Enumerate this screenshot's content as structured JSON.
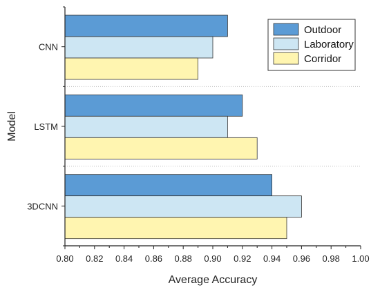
{
  "chart_data": {
    "type": "bar",
    "orientation": "horizontal",
    "categories": [
      "CNN",
      "LSTM",
      "3DCNN"
    ],
    "series": [
      {
        "name": "Outdoor",
        "values": [
          0.91,
          0.92,
          0.94
        ],
        "color": "#5b9bd5"
      },
      {
        "name": "Laboratory",
        "values": [
          0.9,
          0.91,
          0.96
        ],
        "color": "#cde6f3"
      },
      {
        "name": "Corridor",
        "values": [
          0.89,
          0.93,
          0.95
        ],
        "color": "#fff5b0"
      }
    ],
    "xlabel": "Average Accuracy",
    "ylabel": "Model",
    "xlim": [
      0.8,
      1.0
    ],
    "xticks": [
      "0.80",
      "0.82",
      "0.84",
      "0.86",
      "0.88",
      "0.90",
      "0.92",
      "0.94",
      "0.96",
      "0.98",
      "1.00"
    ],
    "legend_position": "top-right",
    "grid": false,
    "group_separators": true
  }
}
